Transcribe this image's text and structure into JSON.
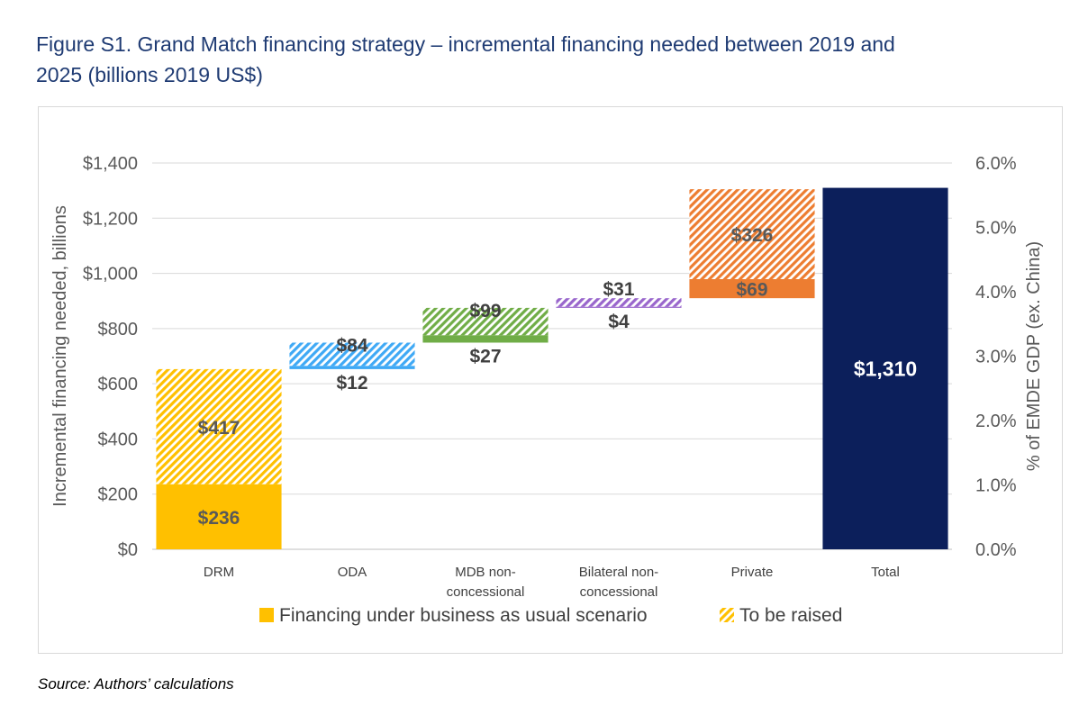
{
  "figure": {
    "title_line1": "Figure S1. Grand Match financing strategy – incremental financing needed between 2019 and",
    "title_line2": "2025 (billions 2019 US$)",
    "source": "Source: Authors’ calculations"
  },
  "chart_data": {
    "type": "bar",
    "subtype": "waterfall-stacked",
    "ylabel": "Incremental financing needed, billions",
    "y2label": "% of EMDE GDP (ex. China)",
    "ylim": [
      0,
      1400
    ],
    "yticks": [
      "$0",
      "$200",
      "$400",
      "$600",
      "$800",
      "$1,000",
      "$1,200",
      "$1,400"
    ],
    "ytick_values": [
      0,
      200,
      400,
      600,
      800,
      1000,
      1200,
      1400
    ],
    "y2lim": [
      0,
      6
    ],
    "y2ticks": [
      "0.0%",
      "1.0%",
      "2.0%",
      "3.0%",
      "4.0%",
      "5.0%",
      "6.0%"
    ],
    "y2tick_values": [
      0,
      1,
      2,
      3,
      4,
      5,
      6
    ],
    "grid": true,
    "legend_position": "bottom",
    "legend": [
      {
        "name": "Financing under business as usual scenario",
        "style": "solid"
      },
      {
        "name": "To be raised",
        "style": "hatched"
      }
    ],
    "categories": [
      {
        "key": "drm",
        "label_lines": [
          "DRM"
        ],
        "color": "#ffc000",
        "text_color": "#595959",
        "base": 0,
        "bau": 236,
        "bau_label": "$236",
        "bau_label_pos": "inside",
        "raise": 417,
        "raise_label": "$417",
        "raise_label_pos": "inside"
      },
      {
        "key": "oda",
        "label_lines": [
          "ODA"
        ],
        "color": "#3fa9f5",
        "text_color": "#404040",
        "base": 653,
        "bau": 12,
        "bau_label": "$12",
        "bau_label_pos": "below",
        "raise": 84,
        "raise_label": "$84",
        "raise_label_pos": "top"
      },
      {
        "key": "mdb",
        "label_lines": [
          "MDB non-",
          "concessional"
        ],
        "color": "#70ad47",
        "text_color": "#404040",
        "base": 749,
        "bau": 27,
        "bau_label": "$27",
        "bau_label_pos": "below",
        "raise": 99,
        "raise_label": "$99",
        "raise_label_pos": "top"
      },
      {
        "key": "bilateral",
        "label_lines": [
          "Bilateral non-",
          "concessional"
        ],
        "color": "#9966cc",
        "text_color": "#404040",
        "base": 875,
        "bau": 4,
        "bau_label": "$4",
        "bau_label_pos": "below",
        "raise": 31,
        "raise_label": "$31",
        "raise_label_pos": "above"
      },
      {
        "key": "private",
        "label_lines": [
          "Private"
        ],
        "color": "#ed7d31",
        "text_color": "#595959",
        "base": 910,
        "bau": 69,
        "bau_label": "$69",
        "bau_label_pos": "inside",
        "raise": 326,
        "raise_label": "$326",
        "raise_label_pos": "inside"
      },
      {
        "key": "total",
        "label_lines": [
          "Total"
        ],
        "color": "#0c1f5b",
        "text_color": "#ffffff",
        "base": 0,
        "total": 1310,
        "total_label": "$1,310"
      }
    ]
  }
}
